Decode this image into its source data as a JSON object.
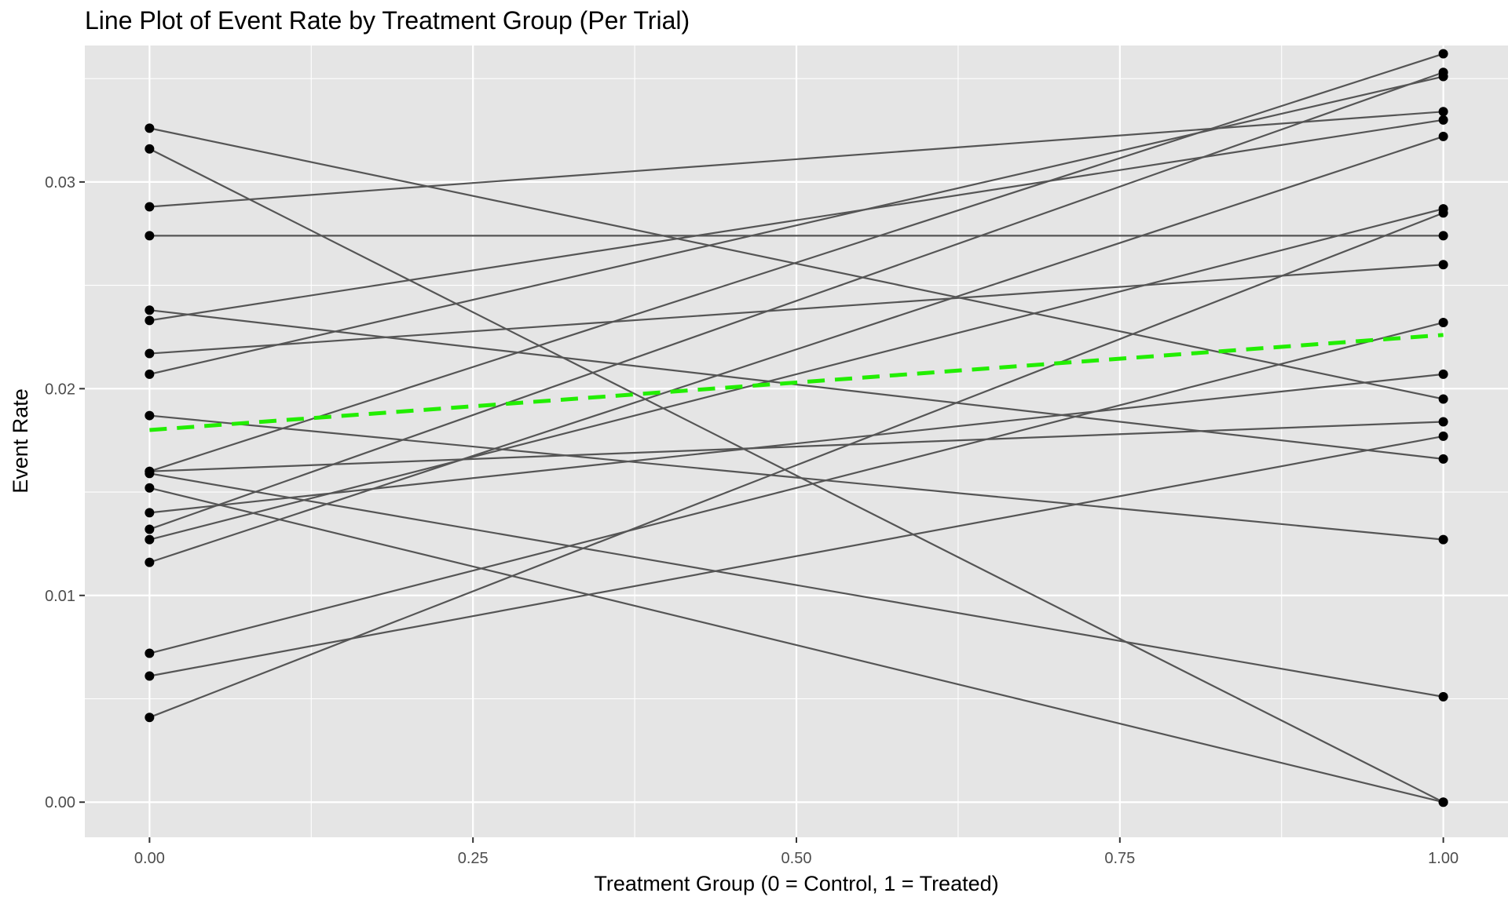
{
  "chart_data": {
    "type": "line",
    "title": "Line Plot of Event Rate by Treatment Group (Per Trial)",
    "xlabel": "Treatment Group (0 = Control, 1 = Treated)",
    "ylabel": "Event Rate",
    "xlim": [
      -0.05,
      1.05
    ],
    "ylim": [
      -0.0017,
      0.0366
    ],
    "x_ticks": [
      0.0,
      0.25,
      0.5,
      0.75,
      1.0
    ],
    "x_tick_labels": [
      "0.00",
      "0.25",
      "0.50",
      "0.75",
      "1.00"
    ],
    "y_ticks": [
      0.0,
      0.01,
      0.02,
      0.03
    ],
    "y_tick_labels": [
      "0.00",
      "0.01",
      "0.02",
      "0.03"
    ],
    "y_minor_ticks": [
      0.005,
      0.015,
      0.025,
      0.035
    ],
    "x_minor_ticks": [
      0.125,
      0.375,
      0.625,
      0.875
    ],
    "grid": true,
    "legend": "none",
    "colors": {
      "panel_background": "#e5e5e5",
      "grid": "#ffffff",
      "trial_line": "#555555",
      "point": "#000000",
      "mean_line": "#22ee00"
    },
    "series": [
      {
        "values": [
          0.0326,
          0.0195
        ]
      },
      {
        "values": [
          0.0316,
          0.0
        ]
      },
      {
        "values": [
          0.0288,
          0.0334
        ]
      },
      {
        "values": [
          0.0274,
          0.0274
        ]
      },
      {
        "values": [
          0.0238,
          0.0166
        ]
      },
      {
        "values": [
          0.0233,
          0.033
        ]
      },
      {
        "values": [
          0.0217,
          0.026
        ]
      },
      {
        "values": [
          0.0207,
          0.0351
        ]
      },
      {
        "values": [
          0.0187,
          0.0127
        ]
      },
      {
        "values": [
          0.016,
          0.0184
        ]
      },
      {
        "values": [
          0.0159,
          0.0051
        ]
      },
      {
        "values": [
          0.0152,
          0.0
        ]
      },
      {
        "values": [
          0.014,
          0.0207
        ]
      },
      {
        "values": [
          0.0132,
          0.0353
        ]
      },
      {
        "values": [
          0.0127,
          0.0287
        ]
      },
      {
        "values": [
          0.0116,
          0.0322
        ]
      },
      {
        "values": [
          0.0072,
          0.0232
        ]
      },
      {
        "values": [
          0.0061,
          0.0177
        ]
      },
      {
        "values": [
          0.0041,
          0.0285
        ]
      },
      {
        "values": [
          0.016,
          0.0362
        ]
      }
    ],
    "mean_line": {
      "values": [
        0.018,
        0.0226
      ]
    }
  }
}
